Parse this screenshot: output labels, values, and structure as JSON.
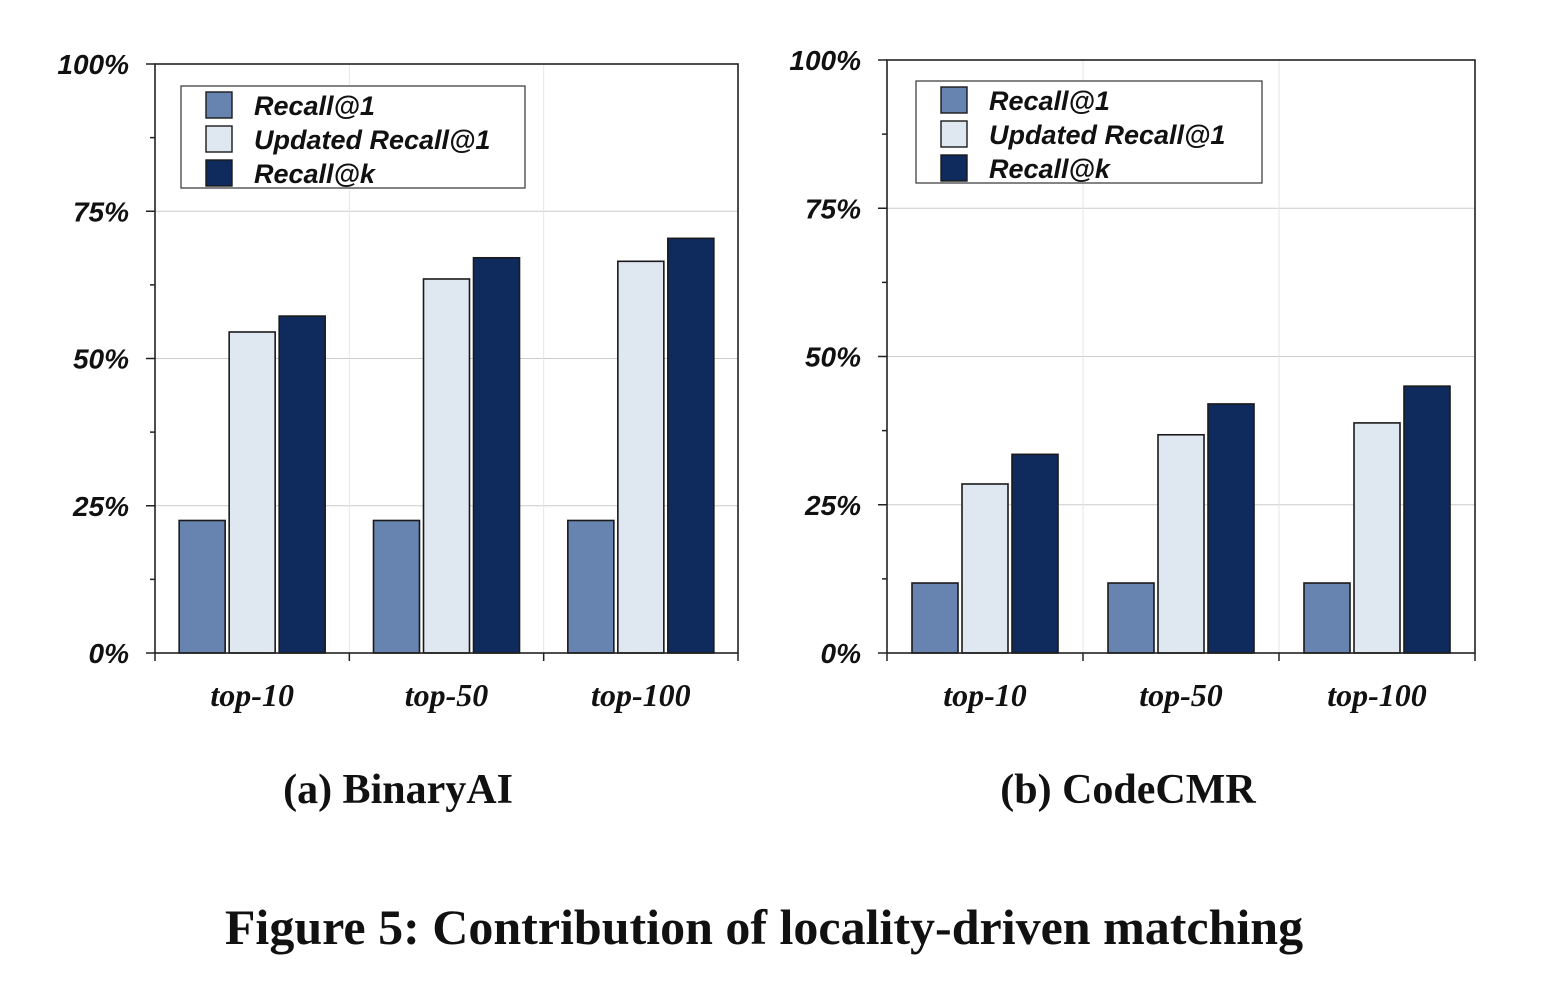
{
  "figure_caption": "Figure 5: Contribution of locality-driven matching",
  "colors": {
    "Recall@1": "#6783b0",
    "Updated Recall@1": "#dfe7f0",
    "Recall@k": "#0f2b5e",
    "grid": "#cccccc",
    "axis": "#222222"
  },
  "chart_data": [
    {
      "type": "bar",
      "caption": "(a) BinaryAI",
      "categories": [
        "top-10",
        "top-50",
        "top-100"
      ],
      "series": [
        {
          "name": "Recall@1",
          "values": [
            22.5,
            22.5,
            22.5
          ]
        },
        {
          "name": "Updated Recall@1",
          "values": [
            54.5,
            63.5,
            66.5
          ]
        },
        {
          "name": "Recall@k",
          "values": [
            57.2,
            67.1,
            70.4
          ]
        }
      ],
      "ylim": [
        0,
        100
      ],
      "yticks": [
        "0%",
        "25%",
        "50%",
        "75%",
        "100%"
      ],
      "grid": true,
      "legend": "top-left"
    },
    {
      "type": "bar",
      "caption": "(b) CodeCMR",
      "categories": [
        "top-10",
        "top-50",
        "top-100"
      ],
      "series": [
        {
          "name": "Recall@1",
          "values": [
            11.8,
            11.8,
            11.8
          ]
        },
        {
          "name": "Updated Recall@1",
          "values": [
            28.5,
            36.8,
            38.8
          ]
        },
        {
          "name": "Recall@k",
          "values": [
            33.5,
            42.0,
            45.0
          ]
        }
      ],
      "ylim": [
        0,
        100
      ],
      "yticks": [
        "0%",
        "25%",
        "50%",
        "75%",
        "100%"
      ],
      "grid": true,
      "legend": "top-left"
    }
  ]
}
